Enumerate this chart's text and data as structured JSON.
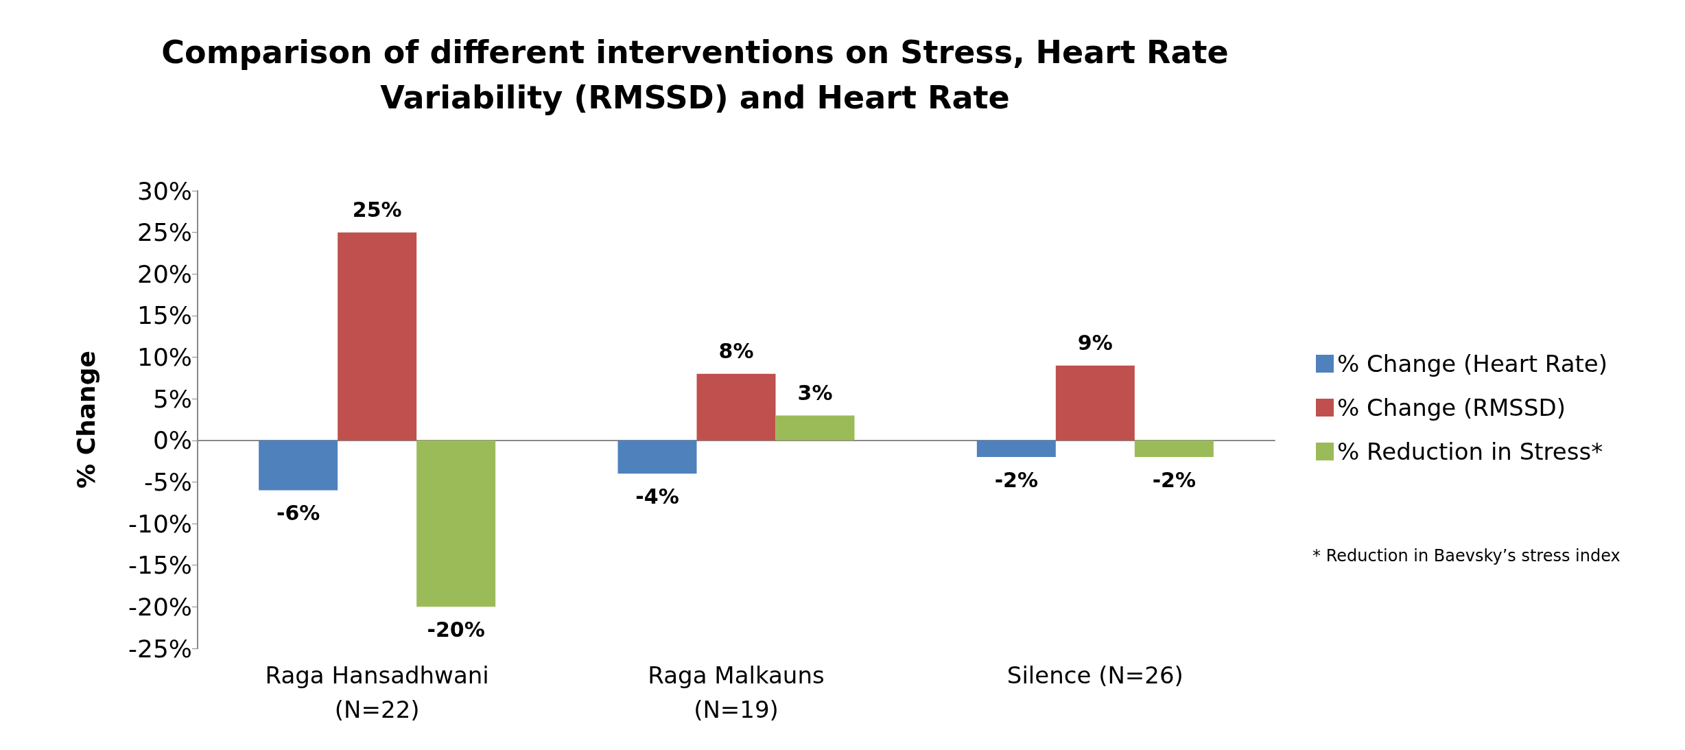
{
  "chart_data": {
    "type": "bar",
    "title": "Comparison of different interventions on Stress, Heart Rate\nVariability (RMSSD) and Heart Rate",
    "ylabel": "% Change",
    "categories": [
      "Raga Hansadhwani\n(N=22)",
      "Raga Malkauns\n(N=19)",
      "Silence (N=26)"
    ],
    "series": [
      {
        "name": "% Change (Heart Rate)",
        "color": "#4f81bd",
        "values": [
          -6,
          -4,
          -2
        ],
        "value_labels": [
          "-6%",
          "-4%",
          "-2%"
        ]
      },
      {
        "name": "% Change (RMSSD)",
        "color": "#c0504d",
        "values": [
          25,
          8,
          9
        ],
        "value_labels": [
          "25%",
          "8%",
          "9%"
        ]
      },
      {
        "name": "% Reduction in Stress*",
        "color": "#9bbb59",
        "values": [
          -20,
          3,
          -2
        ],
        "value_labels": [
          "-20%",
          "3%",
          "-2%"
        ]
      }
    ],
    "ylim": [
      -25,
      30
    ],
    "yticks": [
      {
        "value": -25,
        "label": "-25%"
      },
      {
        "value": -20,
        "label": "-20%"
      },
      {
        "value": -15,
        "label": "-15%"
      },
      {
        "value": -10,
        "label": "-10%"
      },
      {
        "value": -5,
        "label": "-5%"
      },
      {
        "value": 0,
        "label": "0%"
      },
      {
        "value": 5,
        "label": "5%"
      },
      {
        "value": 10,
        "label": "10%"
      },
      {
        "value": 15,
        "label": "15%"
      },
      {
        "value": 20,
        "label": "20%"
      },
      {
        "value": 25,
        "label": "25%"
      },
      {
        "value": 30,
        "label": "30%"
      }
    ],
    "legend": "right",
    "annotations": [
      "* Reduction in Baevsky’s stress index"
    ]
  }
}
